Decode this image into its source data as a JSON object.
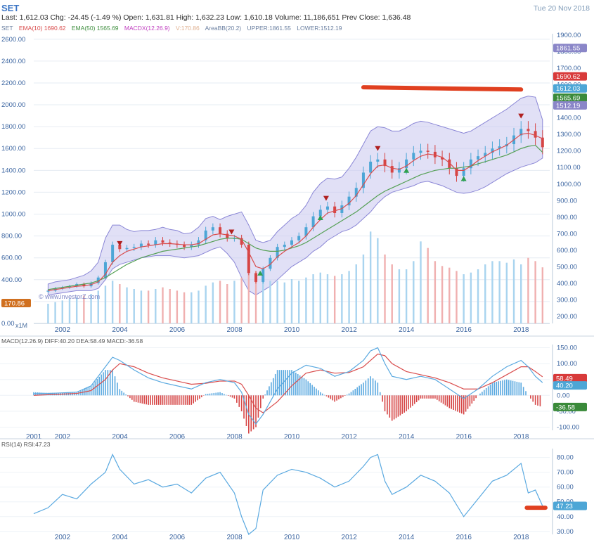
{
  "header": {
    "symbol": "SET",
    "quote_line": "Last: 1,612.03  Chg: -24.45 (-1.49 %)  Open: 1,631.81  High: 1,632.23  Low: 1,610.18  Volume: 11,186,651  Prev Close: 1,636.48",
    "date": "Tue 20 Nov 2018"
  },
  "legend": {
    "set": "SET",
    "ema10": "EMA(10)  1690.62",
    "ema50": "EMA(50)  1565.69",
    "macdx": "MACDX(12.26.9)",
    "vol": "V:170.86",
    "areabb": "AreaBB(20.2)",
    "upper": "UPPER:1861.55",
    "lower": "LOWER:1512.19"
  },
  "watermark": "© www.investorZ.com",
  "x1m": "x1M",
  "macd_label": "MACD(12.26.9)   DIFF:40.20   DEA:58.49   MACD:-36.58",
  "rsi_label": "RSI(14)   RSI:47.23",
  "colors": {
    "band_fill": "#c9c6ee",
    "band_line": "#8a86d6",
    "candle_up": "#4da6d6",
    "candle_down": "#d64545",
    "ema10": "#d94c4c",
    "ema50": "#55a055",
    "macd_diff": "#5aa9e0",
    "macd_dea": "#d94c4c",
    "rsi": "#5aa9e0",
    "highlight": "#e04020"
  },
  "chart_data": [
    {
      "type": "candlestick",
      "title": "SET",
      "x": [
        2001.5,
        2001.75,
        2002.0,
        2002.25,
        2002.5,
        2002.75,
        2003.0,
        2003.25,
        2003.5,
        2003.75,
        2004.0,
        2004.25,
        2004.5,
        2004.75,
        2005.0,
        2005.25,
        2005.5,
        2005.75,
        2006.0,
        2006.25,
        2006.5,
        2006.75,
        2007.0,
        2007.25,
        2007.5,
        2007.75,
        2008.0,
        2008.25,
        2008.5,
        2008.75,
        2009.0,
        2009.25,
        2009.5,
        2009.75,
        2010.0,
        2010.25,
        2010.5,
        2010.75,
        2011.0,
        2011.25,
        2011.5,
        2011.75,
        2012.0,
        2012.25,
        2012.5,
        2012.75,
        2013.0,
        2013.25,
        2013.5,
        2013.75,
        2014.0,
        2014.25,
        2014.5,
        2014.75,
        2015.0,
        2015.25,
        2015.5,
        2015.75,
        2016.0,
        2016.25,
        2016.5,
        2016.75,
        2017.0,
        2017.25,
        2017.5,
        2017.75,
        2018.0,
        2018.25,
        2018.5,
        2018.75
      ],
      "close": [
        300,
        320,
        330,
        340,
        360,
        340,
        370,
        420,
        560,
        720,
        680,
        690,
        700,
        730,
        720,
        760,
        740,
        730,
        720,
        700,
        720,
        760,
        850,
        880,
        820,
        780,
        780,
        720,
        460,
        380,
        500,
        600,
        700,
        720,
        760,
        800,
        880,
        980,
        1040,
        1070,
        1010,
        1080,
        1160,
        1240,
        1380,
        1480,
        1500,
        1440,
        1380,
        1420,
        1500,
        1560,
        1580,
        1570,
        1520,
        1500,
        1420,
        1350,
        1420,
        1500,
        1530,
        1560,
        1600,
        1620,
        1640,
        1720,
        1780,
        1760,
        1700,
        1612
      ],
      "ema10": [
        300,
        310,
        320,
        330,
        340,
        345,
        355,
        380,
        450,
        560,
        620,
        660,
        680,
        700,
        710,
        720,
        730,
        730,
        725,
        720,
        720,
        730,
        770,
        810,
        820,
        810,
        800,
        770,
        650,
        520,
        500,
        540,
        610,
        660,
        700,
        740,
        800,
        880,
        950,
        1010,
        1030,
        1050,
        1100,
        1170,
        1270,
        1370,
        1440,
        1450,
        1420,
        1410,
        1440,
        1490,
        1530,
        1550,
        1540,
        1520,
        1470,
        1400,
        1400,
        1440,
        1490,
        1530,
        1570,
        1600,
        1630,
        1680,
        1730,
        1740,
        1720,
        1690
      ],
      "ema50": [
        310,
        320,
        330,
        340,
        350,
        360,
        370,
        390,
        420,
        460,
        500,
        540,
        570,
        600,
        620,
        640,
        660,
        670,
        680,
        690,
        700,
        710,
        730,
        750,
        770,
        780,
        780,
        770,
        730,
        690,
        670,
        660,
        660,
        670,
        690,
        710,
        740,
        780,
        820,
        860,
        900,
        940,
        980,
        1020,
        1070,
        1120,
        1170,
        1210,
        1240,
        1270,
        1300,
        1330,
        1360,
        1380,
        1400,
        1410,
        1420,
        1420,
        1430,
        1440,
        1460,
        1480,
        1500,
        1520,
        1540,
        1570,
        1600,
        1620,
        1630,
        1565.69
      ],
      "bb_upper": [
        360,
        380,
        390,
        400,
        420,
        440,
        480,
        560,
        780,
        900,
        900,
        860,
        840,
        850,
        850,
        860,
        880,
        860,
        850,
        820,
        830,
        880,
        960,
        980,
        950,
        980,
        1000,
        1020,
        900,
        760,
        740,
        760,
        840,
        900,
        960,
        1000,
        1080,
        1200,
        1280,
        1330,
        1320,
        1340,
        1420,
        1520,
        1640,
        1760,
        1800,
        1790,
        1760,
        1760,
        1790,
        1830,
        1850,
        1840,
        1820,
        1800,
        1780,
        1760,
        1740,
        1760,
        1800,
        1840,
        1880,
        1920,
        1960,
        2010,
        2060,
        2080,
        2070,
        1861.55
      ],
      "bb_lower": [
        260,
        270,
        280,
        290,
        300,
        300,
        300,
        320,
        400,
        500,
        540,
        560,
        580,
        600,
        610,
        620,
        620,
        620,
        610,
        600,
        610,
        620,
        650,
        680,
        700,
        640,
        560,
        420,
        300,
        260,
        300,
        340,
        400,
        460,
        520,
        560,
        600,
        660,
        700,
        760,
        800,
        840,
        860,
        900,
        960,
        1020,
        1100,
        1160,
        1200,
        1220,
        1240,
        1260,
        1290,
        1300,
        1280,
        1260,
        1230,
        1200,
        1190,
        1200,
        1220,
        1250,
        1290,
        1330,
        1370,
        1400,
        1430,
        1450,
        1470,
        1512.19
      ],
      "volume": [
        120,
        130,
        140,
        150,
        160,
        170,
        180,
        200,
        230,
        260,
        240,
        220,
        210,
        200,
        200,
        210,
        220,
        210,
        200,
        190,
        190,
        200,
        230,
        250,
        260,
        240,
        260,
        280,
        300,
        320,
        280,
        260,
        260,
        250,
        270,
        260,
        280,
        300,
        310,
        300,
        290,
        300,
        320,
        360,
        420,
        560,
        520,
        420,
        360,
        330,
        330,
        380,
        500,
        460,
        380,
        350,
        340,
        320,
        300,
        310,
        330,
        360,
        380,
        380,
        370,
        390,
        360,
        400,
        380,
        342
      ],
      "markers": [
        {
          "x": 2004.0,
          "kind": "down"
        },
        {
          "x": 2007.9,
          "kind": "down"
        },
        {
          "x": 2008.9,
          "kind": "up"
        },
        {
          "x": 2011.0,
          "kind": "up"
        },
        {
          "x": 2011.2,
          "kind": "down"
        },
        {
          "x": 2013.0,
          "kind": "down"
        },
        {
          "x": 2014.0,
          "kind": "up"
        },
        {
          "x": 2016.0,
          "kind": "up"
        },
        {
          "x": 2018.0,
          "kind": "down"
        }
      ],
      "ylim": [
        0,
        2650
      ],
      "xlim": [
        2001.0,
        2019.0
      ],
      "left_ticks": [
        "0.00",
        "200.00",
        "400.00",
        "600.00",
        "800.00",
        "1000.00",
        "1200.00",
        "1400.00",
        "1600.00",
        "1800.00",
        "2000.00",
        "2200.00",
        "2400.00",
        "2600.00"
      ],
      "right_ticks": [
        "200.00",
        "300.00",
        "400.00",
        "500.00",
        "600.00",
        "700.00",
        "800.00",
        "900.00",
        "1000.00",
        "1100.00",
        "1200.00",
        "1300.00",
        "1400.00",
        "1500.00",
        "1600.00",
        "1700.00",
        "1800.00",
        "1900.00"
      ],
      "x_ticks": [
        "2002",
        "2004",
        "2006",
        "2008",
        "2010",
        "2012",
        "2014",
        "2016",
        "2018"
      ],
      "badges": {
        "upper": "1861.55",
        "ema10": "1690.62",
        "last": "1612.03",
        "ema50": "1565.69",
        "lower": "1512.19",
        "vol": "170.86"
      }
    },
    {
      "type": "line+bar",
      "title": "MACD(12.26.9)",
      "x": [
        2001.0,
        2001.5,
        2002.0,
        2002.5,
        2003.0,
        2003.5,
        2003.75,
        2004.0,
        2004.5,
        2005.0,
        2005.5,
        2006.0,
        2006.5,
        2007.0,
        2007.5,
        2008.0,
        2008.25,
        2008.5,
        2008.75,
        2009.0,
        2009.5,
        2010.0,
        2010.5,
        2011.0,
        2011.5,
        2012.0,
        2012.5,
        2012.75,
        2013.0,
        2013.25,
        2013.5,
        2014.0,
        2014.5,
        2015.0,
        2015.5,
        2016.0,
        2016.5,
        2017.0,
        2017.5,
        2018.0,
        2018.25,
        2018.5,
        2018.75
      ],
      "diff": [
        5,
        6,
        8,
        10,
        30,
        90,
        120,
        110,
        80,
        55,
        40,
        30,
        20,
        40,
        50,
        40,
        10,
        -60,
        -90,
        -60,
        20,
        70,
        95,
        85,
        60,
        75,
        110,
        140,
        150,
        100,
        60,
        50,
        60,
        50,
        20,
        -10,
        20,
        60,
        90,
        110,
        90,
        60,
        40.2
      ],
      "dea": [
        0,
        2,
        4,
        6,
        15,
        50,
        80,
        100,
        90,
        70,
        55,
        45,
        35,
        38,
        45,
        45,
        35,
        0,
        -40,
        -55,
        -20,
        30,
        70,
        80,
        70,
        72,
        90,
        110,
        130,
        125,
        100,
        75,
        65,
        55,
        40,
        20,
        20,
        40,
        65,
        90,
        90,
        75,
        58.49
      ],
      "hist": [
        10,
        8,
        8,
        8,
        30,
        80,
        80,
        20,
        -20,
        -30,
        -30,
        -30,
        -30,
        4,
        10,
        -10,
        -50,
        -120,
        -100,
        -10,
        80,
        80,
        50,
        10,
        -20,
        6,
        40,
        60,
        40,
        -50,
        -80,
        -50,
        -10,
        -10,
        -40,
        -60,
        0,
        40,
        50,
        40,
        0,
        -30,
        -36.58
      ],
      "ylim": [
        -110,
        160
      ],
      "right_ticks": [
        "-100.00",
        "-50.00",
        "0.00",
        "50.00",
        "100.00",
        "150.00"
      ],
      "x_ticks": [
        "2001",
        "2002",
        "2004",
        "2006",
        "2008",
        "2010",
        "2012",
        "2014",
        "2016",
        "2018"
      ],
      "badges": {
        "dea": "58.49",
        "diff": "40.20",
        "macd": "-36.58"
      }
    },
    {
      "type": "line",
      "title": "RSI(14)",
      "x": [
        2001.0,
        2001.5,
        2002.0,
        2002.5,
        2003.0,
        2003.5,
        2003.75,
        2004.0,
        2004.5,
        2005.0,
        2005.5,
        2006.0,
        2006.5,
        2007.0,
        2007.5,
        2008.0,
        2008.25,
        2008.5,
        2008.75,
        2009.0,
        2009.5,
        2010.0,
        2010.5,
        2011.0,
        2011.5,
        2012.0,
        2012.5,
        2012.75,
        2013.0,
        2013.25,
        2013.5,
        2014.0,
        2014.5,
        2015.0,
        2015.5,
        2016.0,
        2016.5,
        2017.0,
        2017.5,
        2018.0,
        2018.25,
        2018.5,
        2018.75
      ],
      "rsi": [
        42,
        46,
        55,
        52,
        62,
        70,
        82,
        72,
        62,
        65,
        60,
        62,
        56,
        66,
        70,
        56,
        40,
        28,
        32,
        58,
        68,
        72,
        70,
        66,
        60,
        64,
        74,
        80,
        82,
        64,
        55,
        60,
        68,
        64,
        56,
        40,
        52,
        64,
        68,
        76,
        56,
        58,
        47.23
      ],
      "ylim": [
        28,
        86
      ],
      "right_ticks": [
        "30.00",
        "40.00",
        "50.00",
        "60.00",
        "70.00",
        "80.00"
      ],
      "x_ticks": [
        "2002",
        "2004",
        "2006",
        "2008",
        "2010",
        "2012",
        "2014",
        "2016",
        "2018"
      ],
      "badges": {
        "rsi": "47.23"
      }
    }
  ]
}
